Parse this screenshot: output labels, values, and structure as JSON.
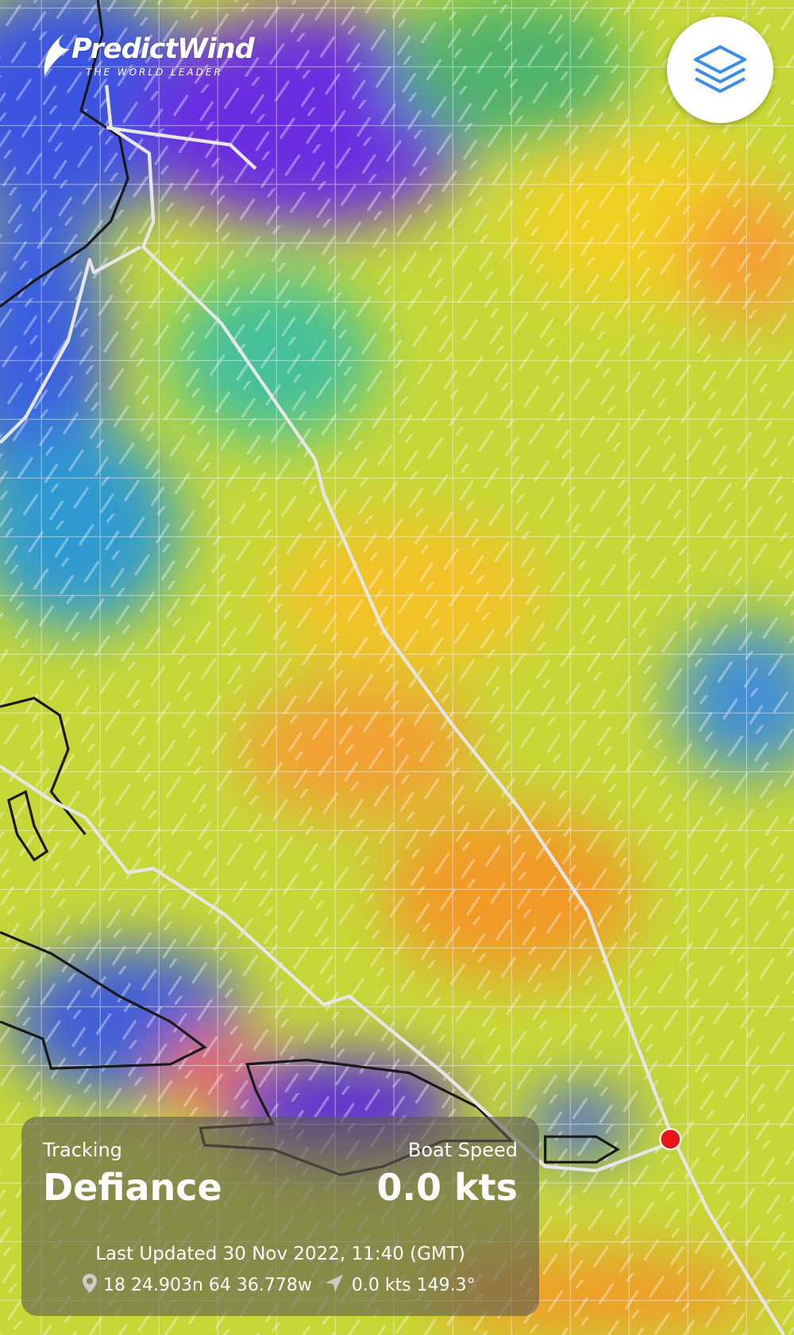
{
  "logo": {
    "name": "PredictWind",
    "tagline": "THE WORLD LEADER"
  },
  "tracking_card": {
    "label": "Tracking",
    "boat_name": "Defiance",
    "speed_label": "Boat Speed",
    "speed": "0.0 kts",
    "last_updated": "Last Updated 30 Nov 2022, 11:40 (GMT)",
    "position": "18 24.903n 64 36.778w",
    "course": "0.0 kts 149.3°"
  }
}
